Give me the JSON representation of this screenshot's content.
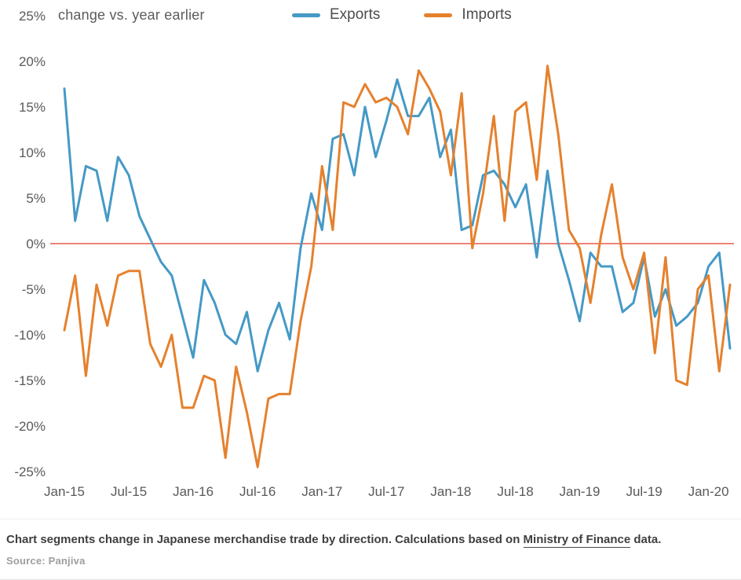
{
  "header": {
    "subtitle": "change vs. year earlier"
  },
  "chart_data": {
    "type": "line",
    "title": "change vs. year earlier",
    "x": [
      "Jan-15",
      "Feb-15",
      "Mar-15",
      "Apr-15",
      "May-15",
      "Jun-15",
      "Jul-15",
      "Aug-15",
      "Sep-15",
      "Oct-15",
      "Nov-15",
      "Dec-15",
      "Jan-16",
      "Feb-16",
      "Mar-16",
      "Apr-16",
      "May-16",
      "Jun-16",
      "Jul-16",
      "Aug-16",
      "Sep-16",
      "Oct-16",
      "Nov-16",
      "Dec-16",
      "Jan-17",
      "Feb-17",
      "Mar-17",
      "Apr-17",
      "May-17",
      "Jun-17",
      "Jul-17",
      "Aug-17",
      "Sep-17",
      "Oct-17",
      "Nov-17",
      "Dec-17",
      "Jan-18",
      "Feb-18",
      "Mar-18",
      "Apr-18",
      "May-18",
      "Jun-18",
      "Jul-18",
      "Aug-18",
      "Sep-18",
      "Oct-18",
      "Nov-18",
      "Dec-18",
      "Jan-19",
      "Feb-19",
      "Mar-19",
      "Apr-19",
      "May-19",
      "Jun-19",
      "Jul-19",
      "Aug-19",
      "Sep-19",
      "Oct-19",
      "Nov-19",
      "Dec-19",
      "Jan-20",
      "Feb-20",
      "Mar-20"
    ],
    "series": [
      {
        "name": "Exports",
        "color": "#4599C6",
        "values": [
          17,
          2.5,
          8.5,
          8,
          2.5,
          9.5,
          7.5,
          3,
          0.5,
          -2,
          -3.5,
          -8,
          -12.5,
          -4,
          -6.5,
          -10,
          -11,
          -7.5,
          -14,
          -9.5,
          -6.5,
          -10.5,
          -0.5,
          5.5,
          1.5,
          11.5,
          12,
          7.5,
          15,
          9.5,
          13.5,
          18,
          14,
          14,
          16,
          9.5,
          12.5,
          1.5,
          2,
          7.5,
          8,
          6.5,
          4,
          6.5,
          -1.5,
          8,
          0,
          -4,
          -8.5,
          -1,
          -2.5,
          -2.5,
          -7.5,
          -6.5,
          -1.5,
          -8,
          -5,
          -9,
          -8,
          -6.5,
          -2.5,
          -1,
          -11.5
        ]
      },
      {
        "name": "Imports",
        "color": "#E5812D",
        "values": [
          -9.5,
          -3.5,
          -14.5,
          -4.5,
          -9,
          -3.5,
          -3,
          -3,
          -11,
          -13.5,
          -10,
          -18,
          -18,
          -14.5,
          -15,
          -23.5,
          -13.5,
          -18.5,
          -24.5,
          -17,
          -16.5,
          -16.5,
          -8.5,
          -2.5,
          8.5,
          1.5,
          15.5,
          15,
          17.5,
          15.5,
          16,
          15,
          12,
          19,
          17,
          14.5,
          7.5,
          16.5,
          -0.5,
          5.5,
          14,
          2.5,
          14.5,
          15.5,
          7,
          19.5,
          12,
          1.5,
          -0.5,
          -6.5,
          1,
          6.5,
          -1.5,
          -5,
          -1,
          -12,
          -1.5,
          -15,
          -15.5,
          -5,
          -3.5,
          -14,
          -4.5
        ]
      }
    ],
    "ylim": [
      -25,
      25
    ],
    "yticks": [
      25,
      20,
      15,
      10,
      5,
      0,
      -5,
      -10,
      -15,
      -20,
      -25
    ],
    "ytick_suffix": "%",
    "xtick_labels": [
      "Jan-15",
      "Jul-15",
      "Jan-16",
      "Jul-16",
      "Jan-17",
      "Jul-17",
      "Jan-18",
      "Jul-18",
      "Jan-19",
      "Jul-19",
      "Jan-20"
    ],
    "xtick_indices": [
      0,
      6,
      12,
      18,
      24,
      30,
      36,
      42,
      48,
      54,
      60
    ],
    "zero_line_color": "#E75B4C",
    "grid": false,
    "legend_position": "top"
  },
  "caption": {
    "part1": "Chart segments change in Japanese merchandise trade by direction. Calculations based on ",
    "link": "Ministry of Finance",
    "part2": " data."
  },
  "source": {
    "text": "Source: Panjiva"
  }
}
